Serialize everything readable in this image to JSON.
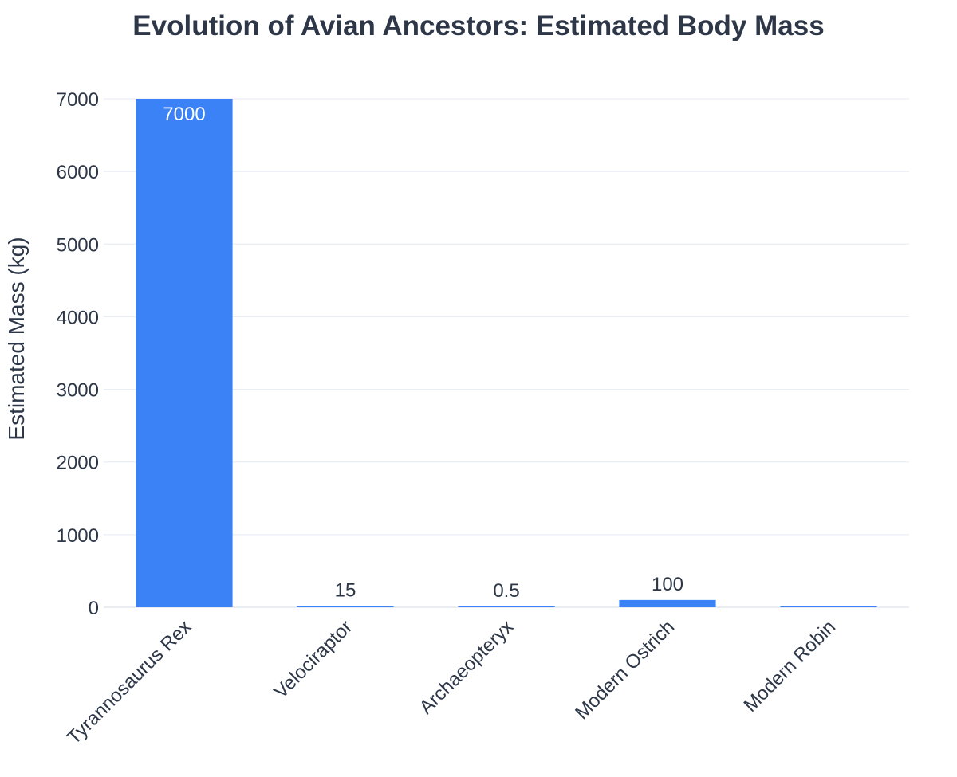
{
  "chart_data": {
    "type": "bar",
    "title": "Evolution of Avian Ancestors: Estimated Body Mass",
    "xlabel": "",
    "ylabel": "Estimated Mass (kg)",
    "categories": [
      "Tyrannosaurus Rex",
      "Velociraptor",
      "Archaeopteryx",
      "Modern Ostrich",
      "Modern Robin"
    ],
    "values": [
      7000,
      15,
      0.5,
      100,
      0.08
    ],
    "data_labels": [
      "7000",
      "15",
      "0.5",
      "100",
      ""
    ],
    "ylim": [
      0,
      7000
    ],
    "yticks": [
      0,
      1000,
      2000,
      3000,
      4000,
      5000,
      6000,
      7000
    ],
    "grid": true,
    "legend": "none",
    "colors": {
      "bar": "#3b82f6",
      "text": "#2d3748",
      "grid": "#e9eef5",
      "inside_label": "#ffffff"
    }
  }
}
